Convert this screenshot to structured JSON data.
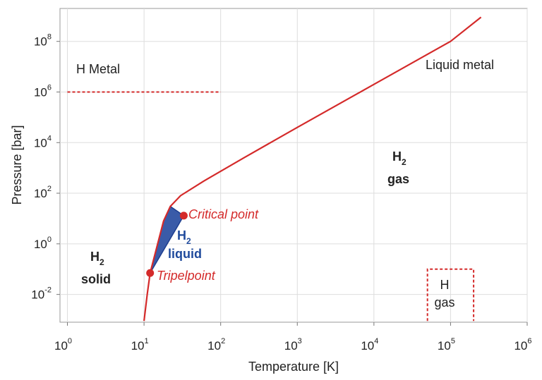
{
  "chart_data": {
    "type": "line",
    "title": "",
    "xlabel": "Temperature [K]",
    "ylabel": "Pressure [bar]",
    "x_scale": "log",
    "y_scale": "log",
    "xlim": [
      0.8,
      1000000
    ],
    "ylim": [
      0.0008,
      2000000000
    ],
    "x_ticks": [
      {
        "value": 1,
        "base": "10",
        "exp": "0"
      },
      {
        "value": 10,
        "base": "10",
        "exp": "1"
      },
      {
        "value": 100,
        "base": "10",
        "exp": "2"
      },
      {
        "value": 1000,
        "base": "10",
        "exp": "3"
      },
      {
        "value": 10000,
        "base": "10",
        "exp": "4"
      },
      {
        "value": 100000,
        "base": "10",
        "exp": "5"
      },
      {
        "value": 1000000,
        "base": "10",
        "exp": "6"
      }
    ],
    "y_ticks": [
      {
        "value": 0.01,
        "base": "10",
        "exp": "-2"
      },
      {
        "value": 1,
        "base": "10",
        "exp": "0"
      },
      {
        "value": 100,
        "base": "10",
        "exp": "2"
      },
      {
        "value": 10000,
        "base": "10",
        "exp": "4"
      },
      {
        "value": 1000000,
        "base": "10",
        "exp": "6"
      },
      {
        "value": 100000000,
        "base": "10",
        "exp": "8"
      }
    ],
    "grid": true,
    "colors": {
      "boundary": "#d42a2a",
      "liquid_fill": "#3a5ba8",
      "liquid_edge": "#1f3f8f",
      "text": "#222222",
      "liquid_text": "#1f4a9c",
      "grid": "#dddddd"
    },
    "series": [
      {
        "kind": "phase-boundary",
        "points": [
          [
            10,
            0.0009
          ],
          [
            11,
            0.01
          ],
          [
            12,
            0.07
          ],
          [
            18,
            8
          ],
          [
            22,
            30
          ],
          [
            30,
            80
          ],
          [
            60,
            300
          ],
          [
            200,
            2500
          ],
          [
            1000,
            40000
          ],
          [
            10000,
            2000000
          ],
          [
            100000,
            100000000
          ],
          [
            250000,
            900000000
          ]
        ]
      },
      {
        "kind": "liquid-region",
        "points": [
          [
            12,
            0.07
          ],
          [
            18,
            8
          ],
          [
            22,
            30
          ],
          [
            33,
            13
          ]
        ]
      },
      {
        "kind": "h-metal-boundary",
        "style": "dashed",
        "points": [
          [
            1,
            1000000
          ],
          [
            100,
            1000000
          ]
        ]
      },
      {
        "kind": "h-gas-box",
        "style": "dashed",
        "points": [
          [
            50000,
            0.0009
          ],
          [
            50000,
            0.1
          ],
          [
            200000,
            0.1
          ],
          [
            200000,
            0.0009
          ]
        ]
      }
    ],
    "points": [
      {
        "name": "Critical point",
        "x": 33,
        "y": 13
      },
      {
        "name": "Tripelpoint",
        "x": 12,
        "y": 0.07
      }
    ],
    "annotations": {
      "h_metal": "H Metal",
      "liquid_metal": "Liquid metal",
      "h2_gas_main": "H",
      "h2_gas_sub": "2",
      "h2_gas_word": "gas",
      "h2_liquid_main": "H",
      "h2_liquid_sub": "2",
      "h2_liquid_word": "liquid",
      "h2_solid_main": "H",
      "h2_solid_sub": "2",
      "h2_solid_word": "solid",
      "h_gas_main": "H",
      "h_gas_word": "gas",
      "critical_point": "Critical point",
      "tripelpoint": "Tripelpoint"
    }
  }
}
